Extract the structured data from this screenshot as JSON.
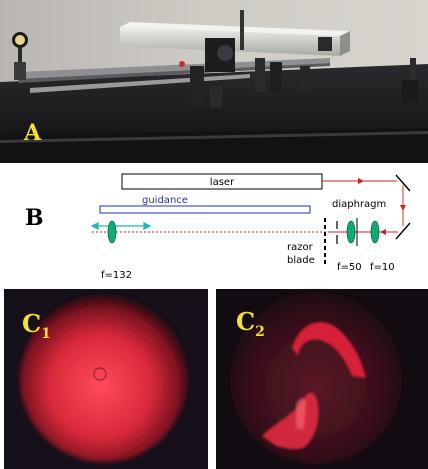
{
  "panels": {
    "a": {
      "label": "A"
    },
    "b": {
      "label": "B",
      "components": {
        "laser": "laser",
        "guidance": "guidance",
        "diaphragm": "diaphragm",
        "razor_blade_line1": "razor",
        "razor_blade_line2": "blade",
        "lens_left": "f=132",
        "lens_mid": "f=50",
        "lens_right": "f=10"
      }
    },
    "c1": {
      "letter": "C",
      "subscript": "1"
    },
    "c2": {
      "letter": "C",
      "subscript": "2"
    }
  },
  "colors": {
    "label_yellow": "#f4e030",
    "beam_red": "#cc2222",
    "lens_green": "#11aa77",
    "guidance_blue": "#2233aa",
    "guide_arrow": "#22bbaa"
  }
}
